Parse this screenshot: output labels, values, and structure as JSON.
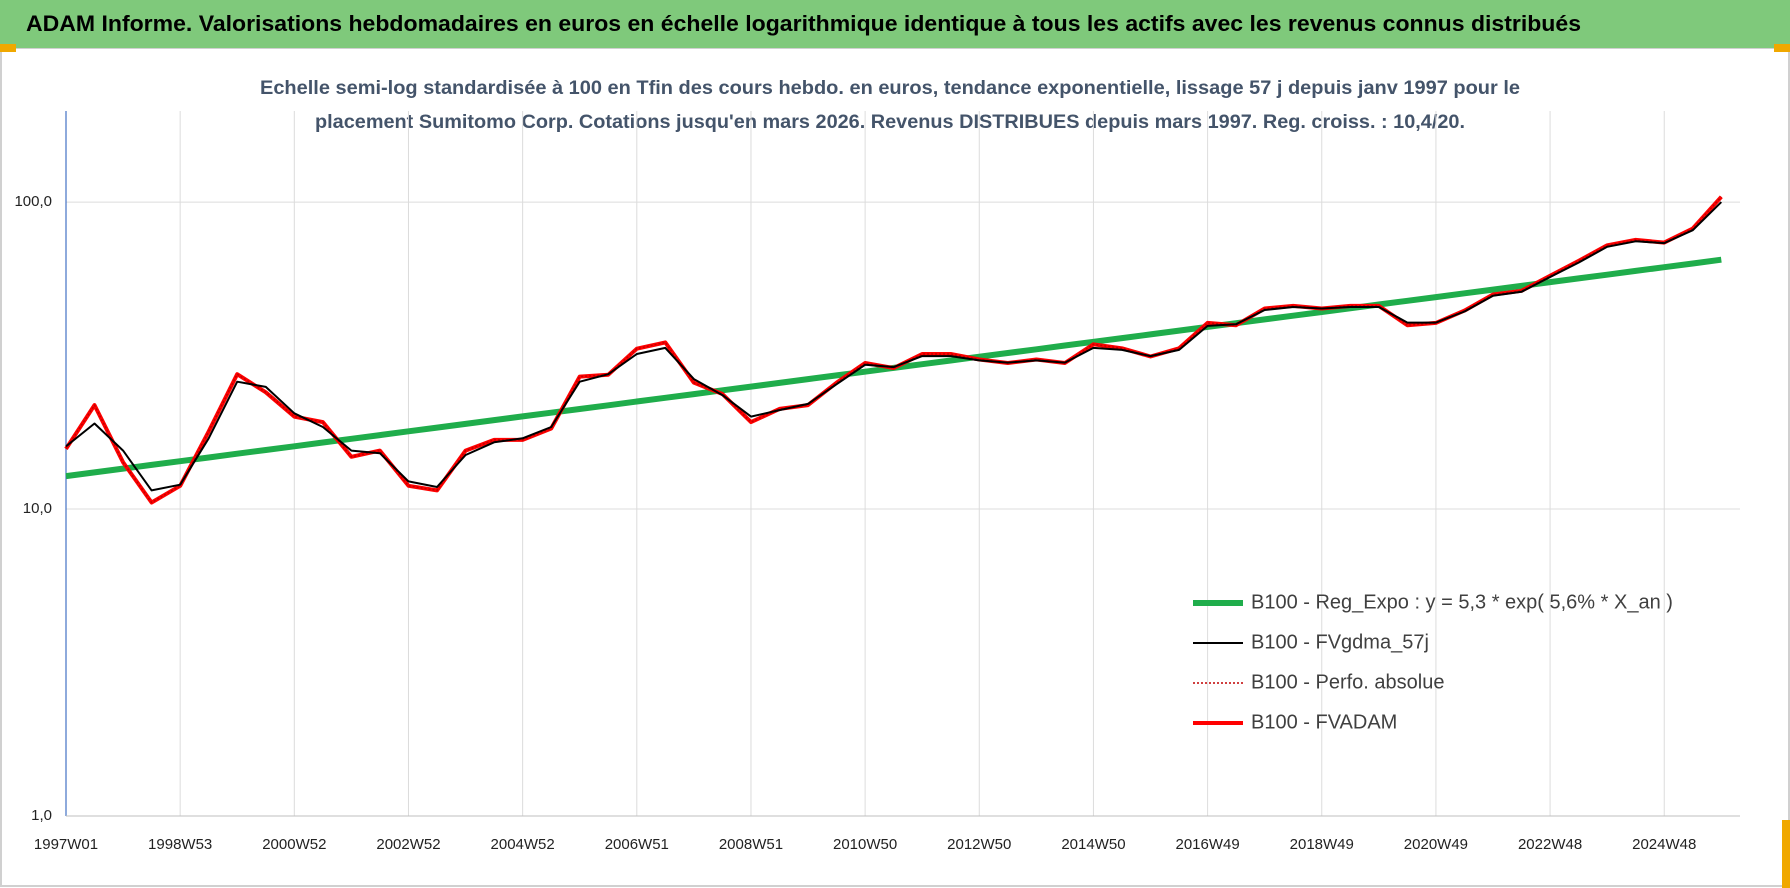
{
  "chart_data": {
    "type": "line",
    "title": "ADAM Informe. Valorisations hebdomadaires en euros en échelle logarithmique identique à tous les actifs avec les revenus connus distribués",
    "subtitle": [
      "Echelle semi-log standardisée à 100 en Tfin des cours hebdo. en euros, tendance exponentielle, lissage 57 j depuis janv 1997 pour le",
      "placement Sumitomo Corp. Cotations jusqu'en mars 2026. Revenus DISTRIBUES depuis mars 1997. Reg. croiss. : 10,4/20."
    ],
    "categories": [
      "1997W01",
      null,
      null,
      null,
      "1998W53",
      null,
      null,
      null,
      "2000W52",
      null,
      null,
      null,
      "2002W52",
      null,
      null,
      null,
      "2004W52",
      null,
      null,
      null,
      "2006W51",
      null,
      null,
      null,
      "2008W51",
      null,
      null,
      null,
      "2010W50",
      null,
      null,
      null,
      "2012W50",
      null,
      null,
      null,
      "2014W50",
      null,
      null,
      null,
      "2016W49",
      null,
      null,
      null,
      "2018W49",
      null,
      null,
      null,
      "2020W49",
      null,
      null,
      null,
      "2022W48",
      null,
      null,
      null,
      "2024W48",
      null,
      null
    ],
    "log_scale": true,
    "ylim": [
      1,
      198
    ],
    "yticks": [
      {
        "value": 1,
        "label": "1,0"
      },
      {
        "value": 10,
        "label": "10,0"
      },
      {
        "value": 100,
        "label": "100,0"
      }
    ],
    "grid": true,
    "legend": "lower right",
    "series": [
      {
        "name": "B100 - Reg_Expo : y = 5,3 * exp( 5,6% *  X_an )",
        "color": "#1fad4b",
        "line_width": 6,
        "style": "solid",
        "values": [
          12.8,
          13.16,
          13.54,
          13.92,
          14.32,
          14.72,
          15.14,
          15.57,
          16.01,
          16.47,
          16.93,
          17.41,
          17.91,
          18.42,
          18.94,
          19.48,
          20.03,
          20.6,
          21.18,
          21.78,
          22.4,
          23.04,
          23.69,
          24.36,
          25.05,
          25.76,
          26.5,
          27.25,
          28.02,
          28.82,
          29.63,
          30.48,
          31.34,
          32.23,
          33.15,
          34.09,
          35.05,
          36.05,
          37.07,
          38.12,
          39.2,
          40.32,
          41.46,
          42.64,
          43.85,
          45.09,
          46.37,
          47.69,
          49.04,
          50.43,
          51.86,
          53.34,
          54.85,
          56.41,
          58.01,
          59.65,
          61.35,
          63.09,
          64.88
        ]
      },
      {
        "name": "B100 - FVgdma_57j",
        "color": "#000000",
        "line_width": 2,
        "style": "solid",
        "values": [
          16,
          19,
          15.5,
          11.5,
          12,
          17,
          26,
          25,
          20.5,
          18.5,
          15.5,
          15.2,
          12.3,
          11.8,
          15,
          16.5,
          17,
          18.5,
          26,
          27.5,
          32,
          33.5,
          26.5,
          23.5,
          20,
          21,
          22,
          25.5,
          29.5,
          29,
          31.5,
          31.5,
          30.5,
          30,
          30.5,
          30,
          33.5,
          33,
          31.5,
          33,
          39.5,
          40,
          44.5,
          45.5,
          45,
          45.5,
          45.5,
          40.5,
          40.5,
          44,
          49.5,
          51,
          57,
          63.5,
          71.5,
          74.5,
          73.5,
          81,
          100
        ]
      },
      {
        "name": "B100 - Perfo. absolue",
        "color": "#c00000",
        "line_width": 1.5,
        "style": "dotted",
        "values": [
          15.7,
          21.8,
          14.2,
          10.5,
          11.9,
          17.9,
          27.5,
          24,
          20,
          19.2,
          14.8,
          15.5,
          11.9,
          11.5,
          15.5,
          16.8,
          16.8,
          18.3,
          27,
          27.4,
          33.3,
          34.9,
          25.8,
          23.7,
          19.2,
          21.2,
          21.8,
          25.8,
          29.9,
          28.8,
          32,
          32,
          30.7,
          29.9,
          30.7,
          29.9,
          34.4,
          33.4,
          31.4,
          33.4,
          40.4,
          39.7,
          45,
          45.9,
          45,
          45.9,
          45.9,
          39.7,
          40.4,
          44.3,
          50,
          51.4,
          57.5,
          64.3,
          72.3,
          75.3,
          73.8,
          82,
          104
        ]
      },
      {
        "name": "B100 - FVADAM",
        "color": "#ff0000",
        "line_width": 4,
        "style": "solid",
        "values": [
          15.7,
          21.8,
          14.2,
          10.5,
          11.9,
          17.9,
          27.5,
          24,
          20,
          19.2,
          14.8,
          15.5,
          11.9,
          11.5,
          15.5,
          16.8,
          16.8,
          18.3,
          27,
          27.4,
          33.3,
          34.9,
          25.8,
          23.7,
          19.2,
          21.2,
          21.8,
          25.8,
          29.9,
          28.8,
          32,
          32,
          30.7,
          29.9,
          30.7,
          29.9,
          34.4,
          33.4,
          31.4,
          33.4,
          40.4,
          39.7,
          45,
          45.9,
          45,
          45.9,
          45.9,
          39.7,
          40.4,
          44.3,
          50,
          51.4,
          57.5,
          64.3,
          72.3,
          75.3,
          73.8,
          82,
          104
        ]
      }
    ]
  }
}
